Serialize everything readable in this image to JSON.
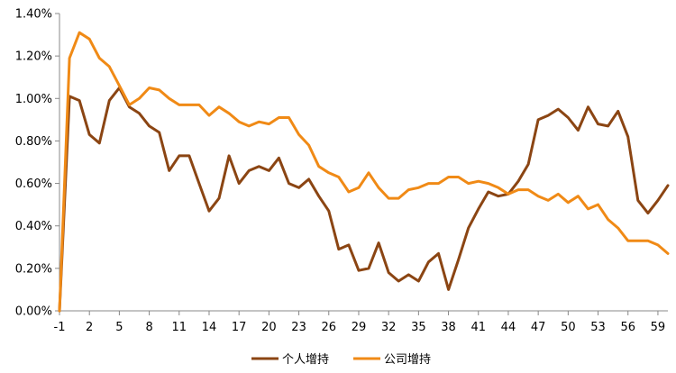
{
  "chart_data": {
    "type": "line",
    "title": "",
    "xlabel": "",
    "ylabel": "",
    "x": [
      -1,
      0,
      1,
      2,
      3,
      4,
      5,
      6,
      7,
      8,
      9,
      10,
      11,
      12,
      13,
      14,
      15,
      16,
      17,
      18,
      19,
      20,
      21,
      22,
      23,
      24,
      25,
      26,
      27,
      28,
      29,
      30,
      31,
      32,
      33,
      34,
      35,
      36,
      37,
      38,
      39,
      40,
      41,
      42,
      43,
      44,
      45,
      46,
      47,
      48,
      49,
      50,
      51,
      52,
      53,
      54,
      55,
      56,
      57,
      58,
      59,
      60
    ],
    "x_tick_labels": [
      "-1",
      "2",
      "5",
      "8",
      "11",
      "14",
      "17",
      "20",
      "23",
      "26",
      "29",
      "32",
      "35",
      "38",
      "41",
      "44",
      "47",
      "50",
      "53",
      "56",
      "59"
    ],
    "x_tick_values": [
      -1,
      2,
      5,
      8,
      11,
      14,
      17,
      20,
      23,
      26,
      29,
      32,
      35,
      38,
      41,
      44,
      47,
      50,
      53,
      56,
      59
    ],
    "ylim": [
      0,
      1.4
    ],
    "y_ticks": [
      0,
      0.2,
      0.4,
      0.6,
      0.8,
      1.0,
      1.2,
      1.4
    ],
    "y_tick_labels": [
      "0.00%",
      "0.20%",
      "0.40%",
      "0.60%",
      "0.80%",
      "1.00%",
      "1.20%",
      "1.40%"
    ],
    "y_unit": "%",
    "grid": false,
    "legend_position": "bottom",
    "series": [
      {
        "name": "个人增持",
        "color": "#8b4513",
        "values": [
          0.0,
          1.01,
          0.99,
          0.83,
          0.79,
          0.99,
          1.05,
          0.96,
          0.93,
          0.87,
          0.84,
          0.66,
          0.73,
          0.73,
          0.6,
          0.47,
          0.53,
          0.73,
          0.6,
          0.66,
          0.68,
          0.66,
          0.72,
          0.6,
          0.58,
          0.62,
          0.54,
          0.47,
          0.29,
          0.31,
          0.19,
          0.2,
          0.32,
          0.18,
          0.14,
          0.17,
          0.14,
          0.23,
          0.27,
          0.1,
          0.24,
          0.39,
          0.48,
          0.56,
          0.54,
          0.55,
          0.61,
          0.69,
          0.9,
          0.92,
          0.95,
          0.91,
          0.85,
          0.96,
          0.88,
          0.87,
          0.94,
          0.82,
          0.52,
          0.46,
          0.52,
          0.59
        ]
      },
      {
        "name": "公司增持",
        "color": "#f08a16",
        "values": [
          0.0,
          1.19,
          1.31,
          1.28,
          1.19,
          1.15,
          1.06,
          0.97,
          1.0,
          1.05,
          1.04,
          1.0,
          0.97,
          0.97,
          0.97,
          0.92,
          0.96,
          0.93,
          0.89,
          0.87,
          0.89,
          0.88,
          0.91,
          0.91,
          0.83,
          0.78,
          0.68,
          0.65,
          0.63,
          0.56,
          0.58,
          0.65,
          0.58,
          0.53,
          0.53,
          0.57,
          0.58,
          0.6,
          0.6,
          0.63,
          0.63,
          0.6,
          0.61,
          0.6,
          0.58,
          0.55,
          0.57,
          0.57,
          0.54,
          0.52,
          0.55,
          0.51,
          0.54,
          0.48,
          0.5,
          0.43,
          0.39,
          0.33,
          0.33,
          0.33,
          0.31,
          0.27
        ]
      }
    ]
  },
  "colors": {
    "axis": "#888888",
    "series_individual": "#8b4513",
    "series_company": "#f08a16"
  }
}
